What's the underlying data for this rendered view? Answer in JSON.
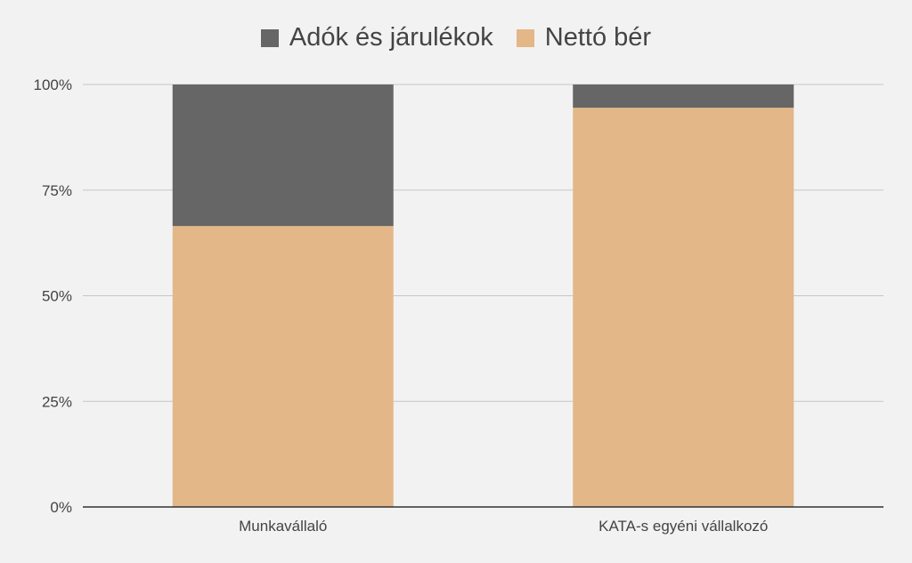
{
  "chart_data": {
    "type": "bar",
    "stacked": true,
    "normalized": true,
    "title": "",
    "xlabel": "",
    "ylabel": "",
    "categories": [
      "Munkavállaló",
      "KATA-s egyéni vállalkozó"
    ],
    "series": [
      {
        "name": "Nettó bér",
        "color": "#e3b788",
        "values": [
          66.5,
          94.5
        ]
      },
      {
        "name": "Adók és járulékok",
        "color": "#666666",
        "values": [
          33.5,
          5.5
        ]
      }
    ],
    "ylim": [
      0,
      100
    ],
    "yticks": [
      "0%",
      "25%",
      "50%",
      "75%",
      "100%"
    ],
    "grid": true,
    "legend_position": "top"
  }
}
